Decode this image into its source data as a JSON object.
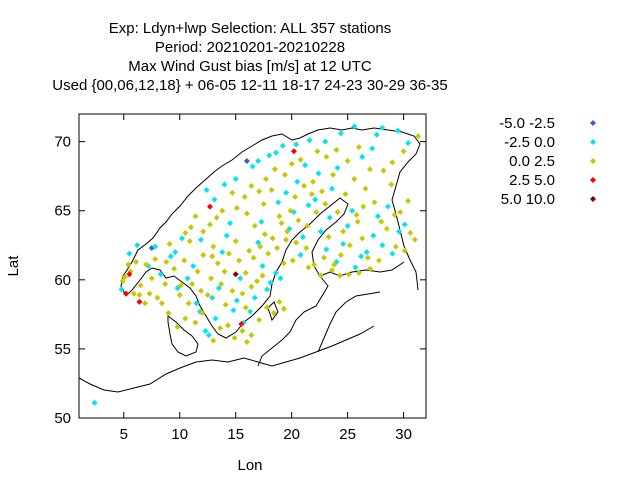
{
  "title_lines": [
    "Exp: Ldyn+lwp   Selection: ALL    357 stations",
    "Period: 20210201-20210228",
    "Max Wind Gust bias [m/s] at  12 UTC",
    "Used {00,06,12,18} + 06-05 12-11 18-17 24-23 30-29 36-35"
  ],
  "chart_data": {
    "type": "scatter",
    "xlabel": "Lon",
    "ylabel": "Lat",
    "xlim": [
      1,
      32
    ],
    "ylim": [
      50,
      72
    ],
    "xticks": [
      5,
      10,
      15,
      20,
      25,
      30
    ],
    "yticks": [
      50,
      55,
      60,
      65,
      70
    ],
    "grid": false,
    "legend_position": "right",
    "background_map": "Scandinavia / Baltic coastline outline",
    "series": [
      {
        "name": "-5.0 -2.5",
        "color": "#3a5fcd",
        "points": [
          [
            7.5,
            62.3
          ],
          [
            16.0,
            68.6
          ]
        ]
      },
      {
        "name": "-2.5 0.0",
        "color": "#00e5ee",
        "points": [
          [
            2.4,
            51.1
          ],
          [
            4.8,
            59.3
          ],
          [
            5.5,
            61.9
          ],
          [
            6.2,
            62.5
          ],
          [
            7.2,
            61.0
          ],
          [
            7.8,
            62.4
          ],
          [
            8.3,
            60.4
          ],
          [
            9.2,
            61.7
          ],
          [
            9.6,
            62.0
          ],
          [
            9.8,
            59.4
          ],
          [
            10.2,
            63.0
          ],
          [
            10.7,
            60.1
          ],
          [
            11.2,
            61.0
          ],
          [
            11.9,
            62.9
          ],
          [
            11.5,
            58.3
          ],
          [
            11.8,
            57.7
          ],
          [
            12.3,
            56.3
          ],
          [
            12.6,
            56.0
          ],
          [
            12.9,
            58.7
          ],
          [
            13.2,
            57.2
          ],
          [
            13.5,
            59.4
          ],
          [
            13.8,
            62.0
          ],
          [
            14.2,
            63.2
          ],
          [
            14.5,
            64.1
          ],
          [
            14.8,
            57.8
          ],
          [
            15.1,
            58.5
          ],
          [
            15.4,
            60.1
          ],
          [
            15.7,
            56.9
          ],
          [
            16.3,
            57.7
          ],
          [
            16.7,
            58.7
          ],
          [
            17.0,
            62.7
          ],
          [
            17.4,
            61.0
          ],
          [
            17.8,
            59.3
          ],
          [
            18.1,
            59.8
          ],
          [
            18.6,
            60.5
          ],
          [
            19.0,
            60.1
          ],
          [
            19.8,
            63.7
          ],
          [
            20.2,
            64.9
          ],
          [
            20.8,
            61.8
          ],
          [
            21.0,
            63.1
          ],
          [
            21.5,
            65.4
          ],
          [
            22.1,
            65.8
          ],
          [
            22.6,
            63.5
          ],
          [
            23.1,
            62.2
          ],
          [
            23.4,
            64.5
          ],
          [
            24.0,
            61.3
          ],
          [
            24.6,
            62.6
          ],
          [
            25.0,
            63.9
          ],
          [
            25.4,
            65.0
          ],
          [
            25.7,
            60.9
          ],
          [
            26.2,
            61.7
          ],
          [
            26.7,
            62.0
          ],
          [
            27.3,
            63.2
          ],
          [
            27.7,
            64.6
          ],
          [
            28.1,
            62.5
          ],
          [
            28.6,
            65.3
          ],
          [
            29.0,
            61.9
          ],
          [
            29.6,
            63.5
          ],
          [
            30.1,
            64.0
          ],
          [
            14.0,
            66.9
          ],
          [
            15.0,
            67.3
          ],
          [
            16.5,
            68.2
          ],
          [
            17.0,
            68.6
          ],
          [
            18.0,
            69.0
          ],
          [
            18.6,
            69.2
          ],
          [
            19.2,
            69.7
          ],
          [
            20.4,
            69.8
          ],
          [
            21.6,
            70.1
          ],
          [
            23.0,
            70.0
          ],
          [
            24.4,
            70.6
          ],
          [
            25.6,
            71.1
          ],
          [
            27.6,
            70.5
          ],
          [
            28.1,
            71.0
          ],
          [
            29.5,
            70.8
          ],
          [
            30.4,
            69.9
          ],
          [
            19.5,
            66.3
          ],
          [
            20.5,
            67.1
          ],
          [
            21.2,
            68.3
          ],
          [
            22.4,
            67.7
          ],
          [
            24.1,
            68.1
          ],
          [
            26.3,
            68.9
          ],
          [
            27.2,
            69.5
          ],
          [
            12.4,
            66.5
          ],
          [
            13.1,
            65.8
          ],
          [
            17.3,
            64.2
          ],
          [
            18.8,
            65.6
          ],
          [
            23.6,
            66.6
          ]
        ]
      },
      {
        "name": "0.0 2.5",
        "color": "#c8c800",
        "points": [
          [
            5.1,
            60.2
          ],
          [
            5.6,
            60.6
          ],
          [
            5.9,
            59.0
          ],
          [
            6.4,
            58.9
          ],
          [
            6.9,
            58.3
          ],
          [
            7.0,
            61.1
          ],
          [
            7.8,
            61.5
          ],
          [
            8.0,
            58.7
          ],
          [
            8.7,
            59.7
          ],
          [
            9.1,
            62.6
          ],
          [
            9.5,
            60.8
          ],
          [
            10.0,
            58.9
          ],
          [
            10.4,
            61.4
          ],
          [
            10.9,
            62.8
          ],
          [
            11.1,
            59.7
          ],
          [
            11.6,
            60.6
          ],
          [
            12.1,
            61.8
          ],
          [
            12.5,
            58.9
          ],
          [
            12.8,
            60.1
          ],
          [
            13.0,
            62.4
          ],
          [
            13.4,
            61.2
          ],
          [
            13.7,
            59.7
          ],
          [
            14.0,
            60.6
          ],
          [
            14.4,
            61.9
          ],
          [
            14.7,
            59.2
          ],
          [
            15.0,
            62.8
          ],
          [
            15.3,
            61.4
          ],
          [
            15.6,
            59.0
          ],
          [
            15.9,
            60.5
          ],
          [
            16.2,
            62.1
          ],
          [
            16.6,
            61.6
          ],
          [
            16.9,
            59.9
          ],
          [
            17.2,
            62.4
          ],
          [
            17.6,
            63.3
          ],
          [
            17.9,
            61.9
          ],
          [
            18.3,
            63.0
          ],
          [
            18.7,
            62.3
          ],
          [
            19.1,
            64.1
          ],
          [
            19.5,
            62.9
          ],
          [
            19.9,
            65.0
          ],
          [
            20.3,
            66.0
          ],
          [
            20.6,
            64.3
          ],
          [
            21.1,
            66.8
          ],
          [
            21.4,
            63.9
          ],
          [
            21.8,
            66.2
          ],
          [
            22.2,
            64.9
          ],
          [
            22.7,
            66.4
          ],
          [
            23.0,
            65.5
          ],
          [
            23.3,
            63.1
          ],
          [
            23.7,
            67.6
          ],
          [
            24.1,
            64.9
          ],
          [
            24.4,
            61.8
          ],
          [
            24.8,
            66.2
          ],
          [
            25.2,
            62.5
          ],
          [
            25.6,
            67.3
          ],
          [
            25.9,
            64.2
          ],
          [
            26.3,
            63.0
          ],
          [
            26.6,
            66.6
          ],
          [
            27.0,
            60.8
          ],
          [
            27.4,
            65.6
          ],
          [
            27.8,
            61.4
          ],
          [
            28.2,
            67.9
          ],
          [
            28.5,
            63.7
          ],
          [
            28.9,
            66.9
          ],
          [
            29.3,
            62.4
          ],
          [
            29.7,
            64.9
          ],
          [
            30.1,
            62.1
          ],
          [
            30.6,
            63.4
          ],
          [
            31.0,
            62.9
          ],
          [
            31.3,
            70.4
          ],
          [
            30.0,
            69.3
          ],
          [
            29.0,
            68.5
          ],
          [
            27.0,
            68.0
          ],
          [
            26.0,
            69.6
          ],
          [
            25.0,
            68.6
          ],
          [
            24.0,
            69.4
          ],
          [
            23.1,
            68.9
          ],
          [
            22.3,
            69.3
          ],
          [
            21.9,
            67.1
          ],
          [
            20.8,
            68.7
          ],
          [
            20.0,
            68.4
          ],
          [
            19.4,
            67.6
          ],
          [
            18.5,
            68.0
          ],
          [
            17.7,
            67.3
          ],
          [
            17.1,
            66.4
          ],
          [
            16.4,
            66.8
          ],
          [
            15.8,
            66.0
          ],
          [
            15.1,
            65.2
          ],
          [
            14.7,
            66.3
          ],
          [
            13.8,
            65.0
          ],
          [
            13.3,
            64.5
          ],
          [
            12.7,
            64.0
          ],
          [
            12.1,
            63.5
          ],
          [
            11.4,
            64.6
          ],
          [
            11.0,
            63.8
          ],
          [
            10.5,
            63.4
          ],
          [
            16.0,
            64.8
          ],
          [
            16.7,
            63.9
          ],
          [
            17.5,
            65.5
          ],
          [
            18.2,
            66.5
          ],
          [
            18.9,
            64.6
          ],
          [
            19.6,
            63.5
          ],
          [
            20.4,
            62.7
          ],
          [
            21.3,
            62.3
          ],
          [
            22.0,
            61.1
          ],
          [
            22.9,
            61.6
          ],
          [
            23.6,
            60.7
          ],
          [
            24.3,
            60.3
          ],
          [
            25.1,
            60.4
          ],
          [
            26.0,
            60.5
          ],
          [
            26.8,
            61.6
          ],
          [
            10.5,
            57.2
          ],
          [
            11.4,
            56.9
          ],
          [
            12.0,
            57.6
          ],
          [
            13.0,
            55.6
          ],
          [
            13.6,
            56.5
          ],
          [
            14.3,
            56.7
          ],
          [
            14.9,
            55.8
          ],
          [
            15.6,
            56.3
          ],
          [
            16.0,
            55.5
          ],
          [
            16.4,
            56.0
          ],
          [
            17.1,
            57.1
          ],
          [
            17.8,
            58.0
          ],
          [
            18.4,
            57.6
          ],
          [
            18.9,
            58.4
          ],
          [
            19.3,
            57.9
          ],
          [
            6.5,
            59.6
          ],
          [
            7.3,
            59.0
          ],
          [
            8.4,
            58.3
          ],
          [
            9.0,
            57.6
          ],
          [
            9.8,
            56.6
          ],
          [
            10.8,
            58.3
          ],
          [
            12.9,
            61.7
          ],
          [
            14.1,
            58.2
          ],
          [
            15.9,
            58.0
          ],
          [
            16.4,
            59.5
          ],
          [
            17.4,
            60.3
          ],
          [
            19.3,
            61.2
          ],
          [
            20.1,
            61.4
          ],
          [
            21.5,
            60.9
          ],
          [
            22.6,
            60.3
          ],
          [
            23.8,
            61.1
          ],
          [
            24.6,
            63.5
          ],
          [
            25.8,
            64.7
          ],
          [
            26.4,
            65.3
          ],
          [
            28.0,
            64.2
          ],
          [
            29.2,
            64.7
          ],
          [
            30.4,
            65.7
          ],
          [
            11.9,
            59.2
          ],
          [
            10.1,
            59.6
          ],
          [
            8.8,
            61.3
          ],
          [
            7.5,
            60.1
          ],
          [
            6.1,
            61.3
          ],
          [
            5.4,
            61.1
          ],
          [
            4.9,
            59.9
          ]
        ]
      },
      {
        "name": "2.5 5.0",
        "color": "#ff0000",
        "points": [
          [
            5.5,
            60.4
          ],
          [
            6.4,
            58.4
          ],
          [
            12.7,
            65.3
          ],
          [
            15.5,
            56.8
          ],
          [
            20.2,
            69.3
          ],
          [
            5.2,
            59.0
          ]
        ]
      },
      {
        "name": "5.0 10.0",
        "color": "#8b0000",
        "points": [
          [
            15.0,
            60.4
          ]
        ]
      }
    ]
  }
}
